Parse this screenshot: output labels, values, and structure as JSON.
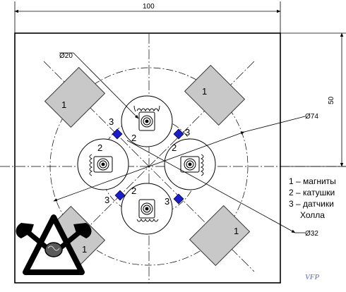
{
  "dimensions": {
    "width": "100",
    "height": "50",
    "d20": "Ø20",
    "d74": "Ø74",
    "d32": "Ø32"
  },
  "callouts": {
    "magnet": "1",
    "coil": "2",
    "sensor": "3"
  },
  "legend": {
    "line1": "1 – магниты",
    "line2": "2 – катушки",
    "line3": "3 – датчики",
    "line4": "Холла"
  },
  "watermark": "VFP",
  "colors": {
    "magnet_fill": "#c8c8c8",
    "sensor_fill": "#1b1bd0",
    "line": "#000000"
  }
}
